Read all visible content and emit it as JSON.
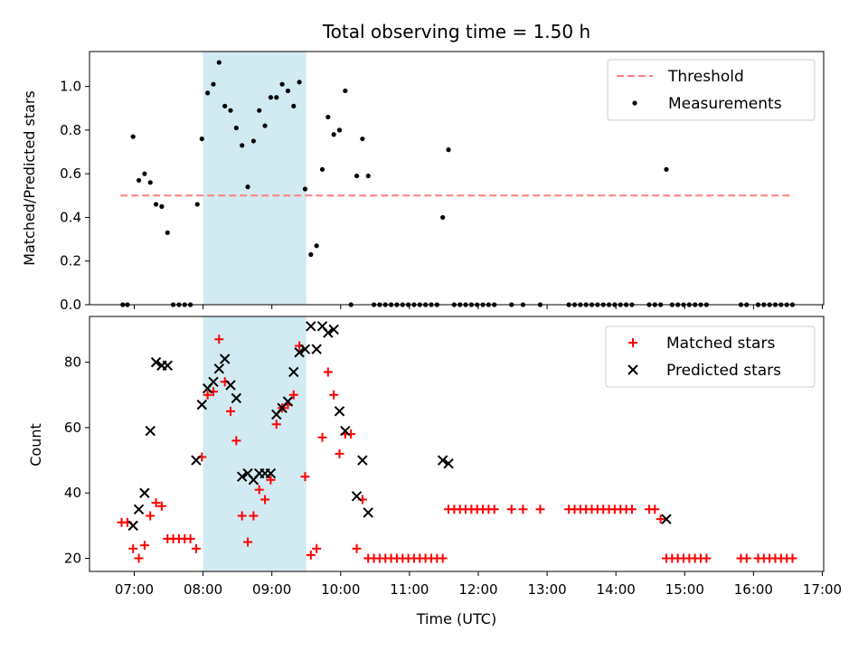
{
  "chart_data": [
    {
      "type": "scatter",
      "title": "Total observing time = 1.50 h",
      "xlabel": "",
      "ylabel": "Matched/Predicted stars",
      "ylim": [
        0,
        1.16
      ],
      "yticks": [
        "0.0",
        "0.2",
        "0.4",
        "0.6",
        "0.8",
        "1.0"
      ],
      "xlim_hours": [
        6.35,
        17.02
      ],
      "legend_position": "upper right",
      "highlight_span_hours": [
        8.0,
        9.5
      ],
      "highlight_color": "#add8e6",
      "threshold": {
        "name": "Threshold",
        "y": 0.5,
        "x_range_hours": [
          6.8,
          16.58
        ],
        "color": "#ff7f7f",
        "style": "dashed"
      },
      "series": [
        {
          "name": "Measurements",
          "color": "#000000",
          "marker": "dot",
          "points": [
            [
              "06:50",
              0
            ],
            [
              "06:54",
              0
            ],
            [
              "06:59",
              0.77
            ],
            [
              "07:04",
              0.57
            ],
            [
              "07:09",
              0.6
            ],
            [
              "07:14",
              0.56
            ],
            [
              "07:19",
              0.46
            ],
            [
              "07:24",
              0.45
            ],
            [
              "07:29",
              0.33
            ],
            [
              "07:34",
              0
            ],
            [
              "07:39",
              0
            ],
            [
              "07:44",
              0
            ],
            [
              "07:49",
              0
            ],
            [
              "07:55",
              0.46
            ],
            [
              "07:59",
              0.76
            ],
            [
              "08:04",
              0.97
            ],
            [
              "08:09",
              1.01
            ],
            [
              "08:14",
              1.11
            ],
            [
              "08:19",
              0.91
            ],
            [
              "08:24",
              0.89
            ],
            [
              "08:29",
              0.81
            ],
            [
              "08:34",
              0.73
            ],
            [
              "08:39",
              0.54
            ],
            [
              "08:44",
              0.75
            ],
            [
              "08:49",
              0.89
            ],
            [
              "08:54",
              0.82
            ],
            [
              "08:59",
              0.95
            ],
            [
              "09:04",
              0.95
            ],
            [
              "09:09",
              1.01
            ],
            [
              "09:14",
              0.98
            ],
            [
              "09:19",
              0.91
            ],
            [
              "09:24",
              1.02
            ],
            [
              "09:29",
              0.53
            ],
            [
              "09:34",
              0.23
            ],
            [
              "09:39",
              0.27
            ],
            [
              "09:44",
              0.62
            ],
            [
              "09:49",
              0.86
            ],
            [
              "09:54",
              0.78
            ],
            [
              "09:59",
              0.8
            ],
            [
              "10:04",
              0.98
            ],
            [
              "10:09",
              0
            ],
            [
              "10:14",
              0.59
            ],
            [
              "10:19",
              0.76
            ],
            [
              "10:24",
              0.59
            ],
            [
              "10:29",
              0
            ],
            [
              "10:34",
              0
            ],
            [
              "10:39",
              0
            ],
            [
              "10:44",
              0
            ],
            [
              "10:49",
              0
            ],
            [
              "10:54",
              0
            ],
            [
              "10:59",
              0
            ],
            [
              "11:04",
              0
            ],
            [
              "11:09",
              0
            ],
            [
              "11:14",
              0
            ],
            [
              "11:19",
              0
            ],
            [
              "11:24",
              0
            ],
            [
              "11:29",
              0.4
            ],
            [
              "11:34",
              0.71
            ],
            [
              "11:39",
              0
            ],
            [
              "11:44",
              0
            ],
            [
              "11:49",
              0
            ],
            [
              "11:54",
              0
            ],
            [
              "11:59",
              0
            ],
            [
              "12:04",
              0
            ],
            [
              "12:09",
              0
            ],
            [
              "12:14",
              0
            ],
            [
              "12:29",
              0
            ],
            [
              "12:39",
              0
            ],
            [
              "12:54",
              0
            ],
            [
              "13:19",
              0
            ],
            [
              "13:24",
              0
            ],
            [
              "13:29",
              0
            ],
            [
              "13:34",
              0
            ],
            [
              "13:39",
              0
            ],
            [
              "13:44",
              0
            ],
            [
              "13:49",
              0
            ],
            [
              "13:54",
              0
            ],
            [
              "13:59",
              0
            ],
            [
              "14:04",
              0
            ],
            [
              "14:09",
              0
            ],
            [
              "14:14",
              0
            ],
            [
              "14:29",
              0
            ],
            [
              "14:34",
              0
            ],
            [
              "14:39",
              0
            ],
            [
              "14:44",
              0.62
            ],
            [
              "14:49",
              0
            ],
            [
              "14:54",
              0
            ],
            [
              "14:59",
              0
            ],
            [
              "15:04",
              0
            ],
            [
              "15:09",
              0
            ],
            [
              "15:14",
              0
            ],
            [
              "15:19",
              0
            ],
            [
              "15:49",
              0
            ],
            [
              "15:54",
              0
            ],
            [
              "16:04",
              0
            ],
            [
              "16:09",
              0
            ],
            [
              "16:14",
              0
            ],
            [
              "16:19",
              0
            ],
            [
              "16:24",
              0
            ],
            [
              "16:29",
              0
            ],
            [
              "16:34",
              0
            ]
          ]
        }
      ]
    },
    {
      "type": "scatter",
      "title": "",
      "xlabel": "Time (UTC)",
      "ylabel": "Count",
      "ylim": [
        16,
        94
      ],
      "yticks": [
        "20",
        "40",
        "60",
        "80"
      ],
      "xlim_hours": [
        6.35,
        17.02
      ],
      "xticks": [
        "07:00",
        "08:00",
        "09:00",
        "10:00",
        "11:00",
        "12:00",
        "13:00",
        "14:00",
        "15:00",
        "16:00",
        "17:00"
      ],
      "legend_position": "upper right",
      "highlight_span_hours": [
        8.0,
        9.5
      ],
      "highlight_color": "#add8e6",
      "series": [
        {
          "name": "Matched stars",
          "color": "#ff0000",
          "marker": "plus",
          "points": [
            [
              "06:49",
              31
            ],
            [
              "06:54",
              31
            ],
            [
              "06:59",
              23
            ],
            [
              "07:04",
              20
            ],
            [
              "07:09",
              24
            ],
            [
              "07:14",
              33
            ],
            [
              "07:19",
              37
            ],
            [
              "07:24",
              36
            ],
            [
              "07:29",
              26
            ],
            [
              "07:34",
              26
            ],
            [
              "07:39",
              26
            ],
            [
              "07:44",
              26
            ],
            [
              "07:49",
              26
            ],
            [
              "07:54",
              23
            ],
            [
              "07:59",
              51
            ],
            [
              "08:04",
              70
            ],
            [
              "08:09",
              71
            ],
            [
              "08:14",
              87
            ],
            [
              "08:19",
              74
            ],
            [
              "08:24",
              65
            ],
            [
              "08:29",
              56
            ],
            [
              "08:34",
              33
            ],
            [
              "08:39",
              25
            ],
            [
              "08:44",
              33
            ],
            [
              "08:49",
              41
            ],
            [
              "08:54",
              38
            ],
            [
              "08:59",
              44
            ],
            [
              "09:04",
              61
            ],
            [
              "09:09",
              66
            ],
            [
              "09:14",
              67
            ],
            [
              "09:19",
              70
            ],
            [
              "09:24",
              85
            ],
            [
              "09:29",
              45
            ],
            [
              "09:34",
              21
            ],
            [
              "09:39",
              23
            ],
            [
              "09:44",
              57
            ],
            [
              "09:49",
              77
            ],
            [
              "09:54",
              70
            ],
            [
              "09:59",
              52
            ],
            [
              "10:04",
              58
            ],
            [
              "10:09",
              58
            ],
            [
              "10:14",
              23
            ],
            [
              "10:19",
              38
            ],
            [
              "10:24",
              20
            ],
            [
              "10:29",
              20
            ],
            [
              "10:34",
              20
            ],
            [
              "10:39",
              20
            ],
            [
              "10:44",
              20
            ],
            [
              "10:49",
              20
            ],
            [
              "10:54",
              20
            ],
            [
              "10:59",
              20
            ],
            [
              "11:04",
              20
            ],
            [
              "11:09",
              20
            ],
            [
              "11:14",
              20
            ],
            [
              "11:19",
              20
            ],
            [
              "11:24",
              20
            ],
            [
              "11:29",
              20
            ],
            [
              "11:34",
              35
            ],
            [
              "11:39",
              35
            ],
            [
              "11:44",
              35
            ],
            [
              "11:49",
              35
            ],
            [
              "11:54",
              35
            ],
            [
              "11:59",
              35
            ],
            [
              "12:04",
              35
            ],
            [
              "12:09",
              35
            ],
            [
              "12:14",
              35
            ],
            [
              "12:29",
              35
            ],
            [
              "12:39",
              35
            ],
            [
              "12:54",
              35
            ],
            [
              "13:19",
              35
            ],
            [
              "13:24",
              35
            ],
            [
              "13:29",
              35
            ],
            [
              "13:34",
              35
            ],
            [
              "13:39",
              35
            ],
            [
              "13:44",
              35
            ],
            [
              "13:49",
              35
            ],
            [
              "13:54",
              35
            ],
            [
              "13:59",
              35
            ],
            [
              "14:04",
              35
            ],
            [
              "14:09",
              35
            ],
            [
              "14:14",
              35
            ],
            [
              "14:29",
              35
            ],
            [
              "14:34",
              35
            ],
            [
              "14:39",
              32
            ],
            [
              "14:44",
              20
            ],
            [
              "14:49",
              20
            ],
            [
              "14:54",
              20
            ],
            [
              "14:59",
              20
            ],
            [
              "15:04",
              20
            ],
            [
              "15:09",
              20
            ],
            [
              "15:14",
              20
            ],
            [
              "15:19",
              20
            ],
            [
              "15:49",
              20
            ],
            [
              "15:54",
              20
            ],
            [
              "16:04",
              20
            ],
            [
              "16:09",
              20
            ],
            [
              "16:14",
              20
            ],
            [
              "16:19",
              20
            ],
            [
              "16:24",
              20
            ],
            [
              "16:29",
              20
            ],
            [
              "16:34",
              20
            ]
          ]
        },
        {
          "name": "Predicted stars",
          "color": "#000000",
          "marker": "x",
          "points": [
            [
              "06:59",
              30
            ],
            [
              "07:04",
              35
            ],
            [
              "07:09",
              40
            ],
            [
              "07:14",
              59
            ],
            [
              "07:19",
              80
            ],
            [
              "07:24",
              79
            ],
            [
              "07:29",
              79
            ],
            [
              "07:54",
              50
            ],
            [
              "07:59",
              67
            ],
            [
              "08:04",
              72
            ],
            [
              "08:09",
              74
            ],
            [
              "08:14",
              78
            ],
            [
              "08:19",
              81
            ],
            [
              "08:24",
              73
            ],
            [
              "08:29",
              69
            ],
            [
              "08:34",
              45
            ],
            [
              "08:39",
              46
            ],
            [
              "08:44",
              44
            ],
            [
              "08:49",
              46
            ],
            [
              "08:54",
              46
            ],
            [
              "08:59",
              46
            ],
            [
              "09:04",
              64
            ],
            [
              "09:09",
              66
            ],
            [
              "09:14",
              68
            ],
            [
              "09:19",
              77
            ],
            [
              "09:24",
              83
            ],
            [
              "09:29",
              84
            ],
            [
              "09:34",
              91
            ],
            [
              "09:39",
              84
            ],
            [
              "09:44",
              91
            ],
            [
              "09:49",
              89
            ],
            [
              "09:54",
              90
            ],
            [
              "09:59",
              65
            ],
            [
              "10:04",
              59
            ],
            [
              "10:14",
              39
            ],
            [
              "10:19",
              50
            ],
            [
              "10:24",
              34
            ],
            [
              "11:29",
              50
            ],
            [
              "11:34",
              49
            ],
            [
              "14:44",
              32
            ]
          ]
        }
      ]
    }
  ]
}
